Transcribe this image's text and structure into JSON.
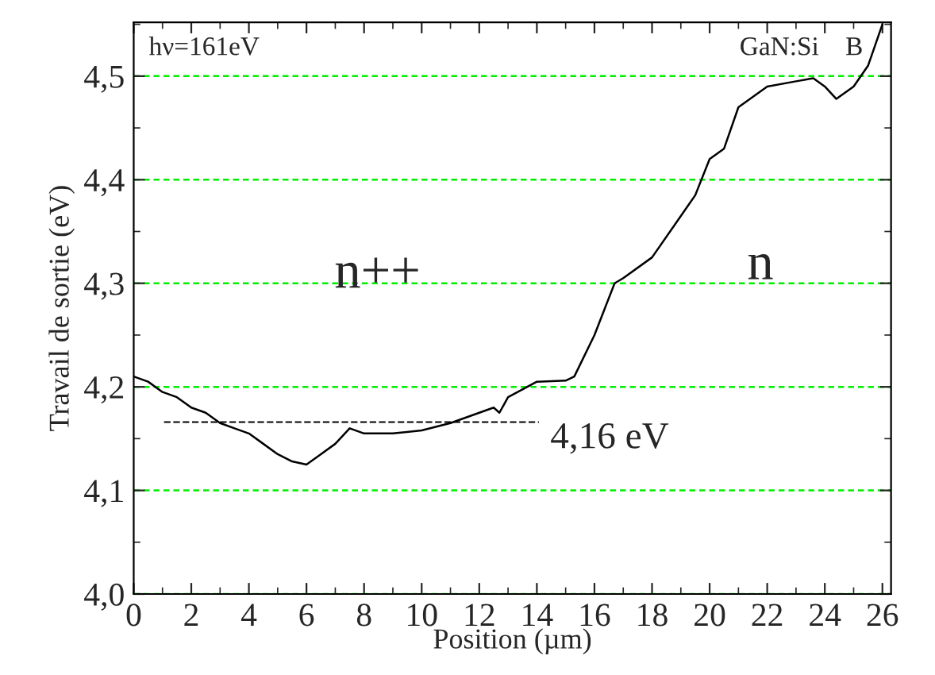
{
  "chart_data": {
    "type": "line",
    "xlabel": "Position (µm)",
    "ylabel": "Travail de sortie (eV)",
    "xlim": [
      0,
      26.3
    ],
    "ylim": [
      4.0,
      4.552
    ],
    "xticks": [
      0,
      2,
      4,
      6,
      8,
      10,
      12,
      14,
      16,
      18,
      20,
      22,
      24,
      26
    ],
    "yticks": [
      {
        "value": 4.0,
        "label": "4,0"
      },
      {
        "value": 4.1,
        "label": "4,1"
      },
      {
        "value": 4.2,
        "label": "4,2"
      },
      {
        "value": 4.3,
        "label": "4,3"
      },
      {
        "value": 4.4,
        "label": "4,4"
      },
      {
        "value": 4.5,
        "label": "4,5"
      }
    ],
    "grid": "y",
    "legend": false,
    "marker": "none",
    "line_style": "solid",
    "series": [
      {
        "color": "#000000",
        "x": [
          0,
          0.5,
          1,
          1.5,
          2,
          2.5,
          3,
          3.5,
          4,
          4.5,
          5,
          5.5,
          6,
          6.5,
          7,
          7.5,
          8,
          9,
          10,
          11,
          12,
          12.5,
          12.7,
          13,
          14,
          15,
          15.3,
          16,
          16.7,
          17,
          18,
          19,
          19.5,
          20,
          20.5,
          21,
          21.5,
          22,
          23,
          23.6,
          24,
          24.4,
          25,
          25.5,
          26
        ],
        "values": [
          4.21,
          4.205,
          4.195,
          4.19,
          4.18,
          4.175,
          4.165,
          4.16,
          4.155,
          4.145,
          4.135,
          4.128,
          4.125,
          4.135,
          4.145,
          4.16,
          4.155,
          4.155,
          4.158,
          4.165,
          4.175,
          4.18,
          4.175,
          4.19,
          4.205,
          4.206,
          4.21,
          4.25,
          4.3,
          4.305,
          4.325,
          4.365,
          4.385,
          4.42,
          4.43,
          4.47,
          4.48,
          4.49,
          4.495,
          4.498,
          4.49,
          4.478,
          4.49,
          4.51,
          4.55
        ]
      }
    ],
    "ref_lines": [
      {
        "axis": "y",
        "value": 4.166,
        "label": "4,16 eV",
        "color": "#000000",
        "line_style": "dashed"
      }
    ],
    "annotations": [
      "hν=161eV",
      "GaN:Si    B",
      "n++",
      "n"
    ]
  }
}
